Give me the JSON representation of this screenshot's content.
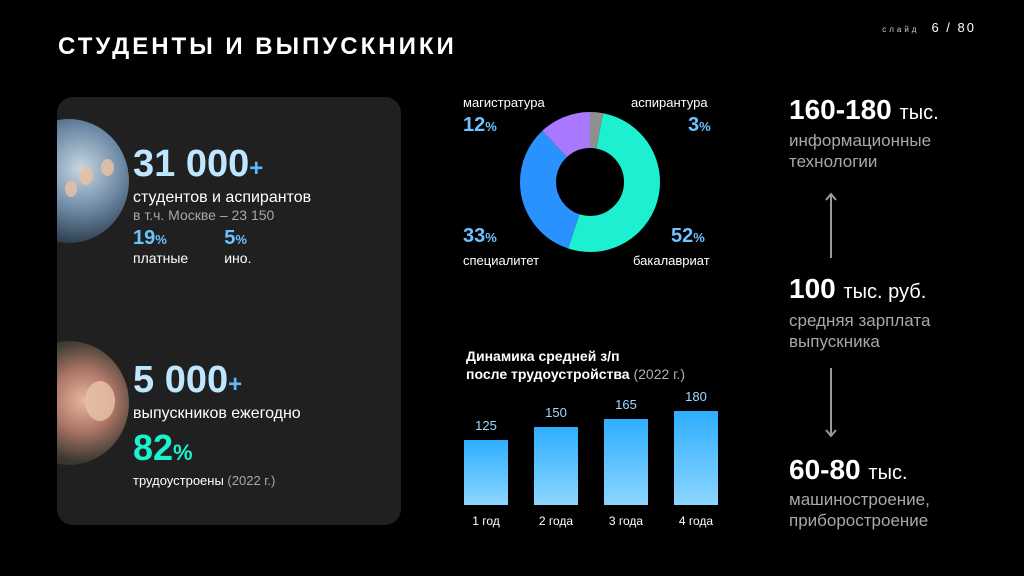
{
  "header": {
    "title": "СТУДЕНТЫ И ВЫПУСКНИКИ",
    "slide_label": "слайд",
    "slide_number": "6 / 80"
  },
  "students": {
    "count": "31 000",
    "plus": "+",
    "label": "студентов и аспирантов",
    "moscow": "в т.ч. Москве – 23 150",
    "paid_pct": "19",
    "paid_label": "платные",
    "foreign_pct": "5",
    "foreign_label": "ино.",
    "percent_sign": "%"
  },
  "graduates": {
    "count": "5 000",
    "plus": "+",
    "label": "выпускников ежегодно",
    "employed_pct": "82",
    "employed_label": "трудоустроены",
    "employed_year": "(2022 г.)",
    "percent_sign": "%"
  },
  "donut": {
    "segments": [
      {
        "label": "бакалавриат",
        "value": 52,
        "color": "#1cf0d0"
      },
      {
        "label": "специалитет",
        "value": 33,
        "color": "#2a92ff"
      },
      {
        "label": "магистратура",
        "value": 12,
        "color": "#a879ff"
      },
      {
        "label": "аспирантура",
        "value": 3,
        "color": "#8f8f8f"
      }
    ],
    "pct_text": {
      "magistratura": "12",
      "aspirantura": "3",
      "specialitet": "33",
      "bakalavriat": "52"
    },
    "percent_sign": "%"
  },
  "chart_data": {
    "type": "bar",
    "title_line1": "Динамика средней з/п",
    "title_line2": "после трудоустройства",
    "title_year": "(2022 г.)",
    "categories": [
      "1 год",
      "2 года",
      "3 года",
      "4 года"
    ],
    "values": [
      125,
      150,
      165,
      180
    ],
    "value_labels": [
      "125",
      "150",
      "165",
      "180"
    ],
    "ylim": [
      0,
      180
    ]
  },
  "salaries": {
    "top_value": "160-180",
    "top_unit": "тыс.",
    "top_desc1": "информационные",
    "top_desc2": "технологии",
    "mid_value": "100",
    "mid_unit": "тыс. руб.",
    "mid_desc1": "средняя зарплата",
    "mid_desc2": "выпускника",
    "bottom_value": "60-80",
    "bottom_unit": "тыс.",
    "bottom_desc1": "машиностроение,",
    "bottom_desc2": "приборостроение"
  }
}
